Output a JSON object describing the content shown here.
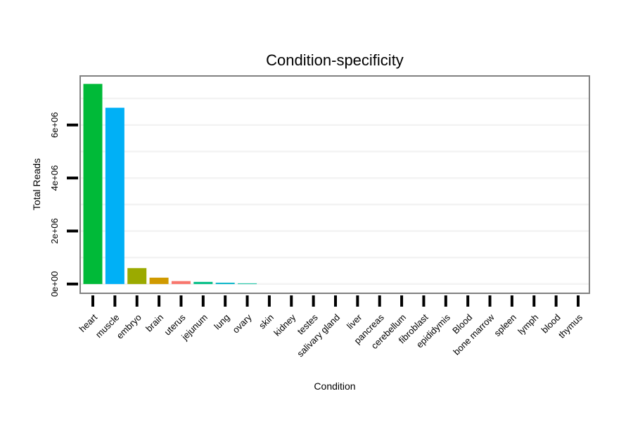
{
  "chart_data": {
    "type": "bar",
    "title": "Condition-specificity",
    "xlabel": "Condition",
    "ylabel": "Total Reads",
    "ylim": [
      -350000,
      7850000
    ],
    "yticks": [
      0,
      2000000,
      4000000,
      6000000
    ],
    "ytick_labels": [
      "0e+00",
      "2e+06",
      "4e+06",
      "6e+06"
    ],
    "grid": true,
    "categories": [
      "heart",
      "muscle",
      "embryo",
      "brain",
      "uterus",
      "jejunum",
      "lung",
      "ovary",
      "skin",
      "kidney",
      "testes",
      "salivary gland",
      "liver",
      "pancreas",
      "cerebellum",
      "fibroblast",
      "epididymis",
      "Blood",
      "bone marrow",
      "spleen",
      "lymph",
      "blood",
      "thymus"
    ],
    "values": [
      7550000,
      6650000,
      600000,
      240000,
      110000,
      80000,
      50000,
      25000,
      0,
      0,
      0,
      0,
      0,
      0,
      0,
      0,
      0,
      0,
      0,
      0,
      0,
      0,
      0
    ],
    "colors": [
      "#00BA38",
      "#00B0F6",
      "#9BAA00",
      "#D09A00",
      "#F8766D",
      "#00BE84",
      "#00B3C8",
      "#00BF9C",
      "#F8766D",
      "#F8766D",
      "#F8766D",
      "#F8766D",
      "#F8766D",
      "#F8766D",
      "#F8766D",
      "#F8766D",
      "#F8766D",
      "#F8766D",
      "#F8766D",
      "#F8766D",
      "#F8766D",
      "#F8766D",
      "#F8766D"
    ]
  }
}
